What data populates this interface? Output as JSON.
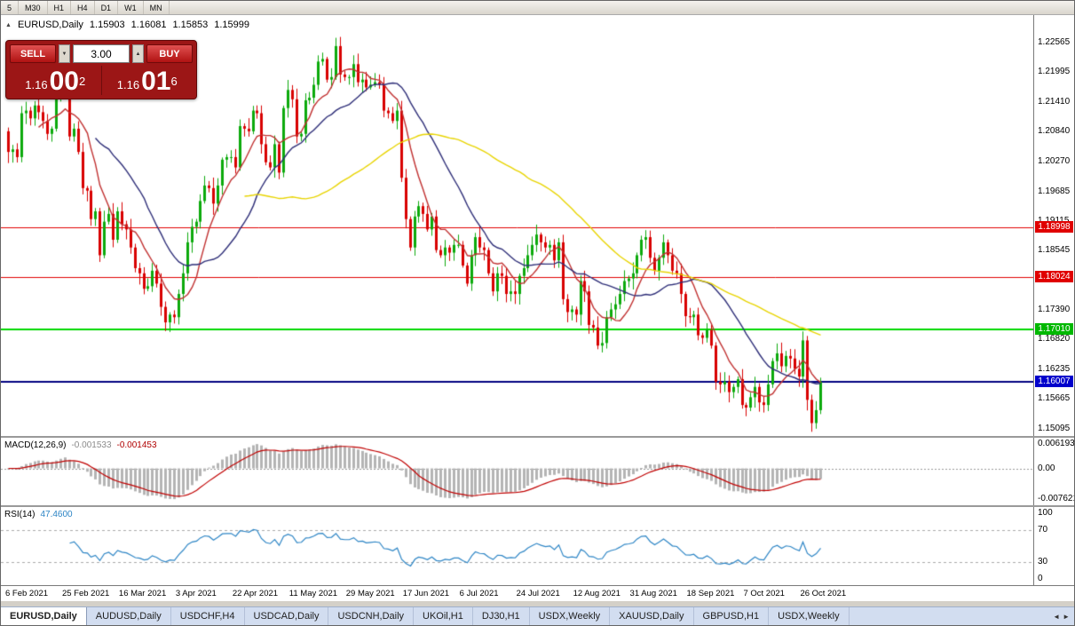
{
  "topbar": {
    "timeframes": [
      "5",
      "M30",
      "H1",
      "H4",
      "D1",
      "W1",
      "MN"
    ]
  },
  "chart": {
    "symbol_header": {
      "marker": "▲",
      "title": "EURUSD,Daily",
      "open": "1.15903",
      "high": "1.16081",
      "low": "1.15853",
      "close": "1.15999"
    },
    "trade_panel": {
      "sell_label": "SELL",
      "buy_label": "BUY",
      "volume": "3.00",
      "decrease_glyph": "▼",
      "increase_glyph": "▲",
      "sell_price": {
        "prefix": "1.16",
        "big": "00",
        "sup": "2"
      },
      "buy_price": {
        "prefix": "1.16",
        "big": "01",
        "sup": "6"
      }
    }
  },
  "macd_panel": {
    "name": "MACD(12,26,9)",
    "value_main": "-0.001533",
    "value_signal": "-0.001453",
    "axis": [
      {
        "label": "0.006193",
        "value": 0.006193
      },
      {
        "label": "0.00",
        "value": 0
      },
      {
        "label": "-0.007621",
        "value": -0.007621
      }
    ]
  },
  "rsi_panel": {
    "name": "RSI(14)",
    "value": "47.4600",
    "axis": [
      {
        "label": "100",
        "value": 100
      },
      {
        "label": "70",
        "value": 70
      },
      {
        "label": "30",
        "value": 30
      },
      {
        "label": "0",
        "value": 0
      }
    ]
  },
  "bottom_tabs": {
    "scroll_left": "◄",
    "scroll_right": "►",
    "items": [
      {
        "label": "EURUSD,Daily",
        "active": true
      },
      {
        "label": "AUDUSD,Daily"
      },
      {
        "label": "USDCHF,H4"
      },
      {
        "label": "USDCAD,Daily"
      },
      {
        "label": "USDCNH,Daily"
      },
      {
        "label": "UKOil,H1"
      },
      {
        "label": "DJ30,H1"
      },
      {
        "label": "USDX,Weekly"
      },
      {
        "label": "XAUUSD,Daily"
      },
      {
        "label": "GBPUSD,H1"
      },
      {
        "label": "USDX,Weekly"
      }
    ]
  },
  "chart_data": {
    "type": "candlestick",
    "symbol": "EURUSD",
    "timeframe": "Daily",
    "price_range": {
      "top": 1.231,
      "bottom": 1.1495
    },
    "first_open": 1.2085,
    "closes": [
      1.2045,
      1.205,
      1.2035,
      1.212,
      1.2125,
      1.211,
      1.2135,
      1.2122,
      1.2105,
      1.208,
      1.209,
      1.215,
      1.217,
      1.2175,
      1.2075,
      1.209,
      1.2045,
      1.1975,
      1.197,
      1.1915,
      1.193,
      1.1845,
      1.191,
      1.1925,
      1.1875,
      1.193,
      1.1905,
      1.1895,
      1.186,
      1.182,
      1.181,
      1.178,
      1.1785,
      1.1815,
      1.179,
      1.1745,
      1.1715,
      1.173,
      1.1725,
      1.177,
      1.181,
      1.187,
      1.19,
      1.191,
      1.195,
      1.198,
      1.1975,
      1.1945,
      1.198,
      1.203,
      1.2035,
      1.2035,
      1.2015,
      1.2095,
      1.209,
      1.2085,
      1.2125,
      1.212,
      1.206,
      1.2025,
      1.2015,
      1.206,
      1.2005,
      1.213,
      1.2165,
      1.2147,
      1.2075,
      1.208,
      1.2145,
      1.215,
      1.2175,
      1.222,
      1.2225,
      1.2185,
      1.219,
      1.225,
      1.2195,
      1.219,
      1.219,
      1.2215,
      1.218,
      1.2185,
      1.217,
      1.2175,
      1.218,
      1.2175,
      1.2125,
      1.212,
      1.2105,
      1.2125,
      1.1995,
      1.1915,
      1.186,
      1.192,
      1.194,
      1.1925,
      1.1895,
      1.192,
      1.1855,
      1.1845,
      1.186,
      1.185,
      1.1865,
      1.1865,
      1.1825,
      1.179,
      1.1845,
      1.188,
      1.186,
      1.1855,
      1.181,
      1.1775,
      1.181,
      1.1805,
      1.177,
      1.1775,
      1.177,
      1.1805,
      1.182,
      1.1845,
      1.1865,
      1.1885,
      1.187,
      1.186,
      1.1865,
      1.1835,
      1.187,
      1.176,
      1.1735,
      1.174,
      1.173,
      1.1795,
      1.1775,
      1.171,
      1.1705,
      1.167,
      1.1675,
      1.1725,
      1.174,
      1.175,
      1.177,
      1.1795,
      1.18,
      1.181,
      1.1845,
      1.1875,
      1.188,
      1.184,
      1.1815,
      1.184,
      1.187,
      1.1845,
      1.1815,
      1.181,
      1.177,
      1.1727,
      1.1725,
      1.173,
      1.169,
      1.1685,
      1.17,
      1.167,
      1.16,
      1.1595,
      1.16,
      1.158,
      1.159,
      1.1605,
      1.1555,
      1.155,
      1.157,
      1.159,
      1.156,
      1.1555,
      1.1595,
      1.164,
      1.1655,
      1.163,
      1.165,
      1.1645,
      1.1625,
      1.161,
      1.168,
      1.1565,
      1.152,
      1.1545,
      1.16
    ],
    "candles_per_date_label": 13,
    "date_labels": [
      "6 Feb 2021",
      "25 Feb 2021",
      "16 Mar 2021",
      "3 Apr 2021",
      "22 Apr 2021",
      "11 May 2021",
      "29 May 2021",
      "17 Jun 2021",
      "6 Jul 2021",
      "24 Jul 2021",
      "12 Aug 2021",
      "31 Aug 2021",
      "18 Sep 2021",
      "7 Oct 2021",
      "26 Oct 2021"
    ],
    "price_axis_labels": [
      "1.22565",
      "1.21995",
      "1.21410",
      "1.20840",
      "1.20270",
      "1.19685",
      "1.19115",
      "1.18545",
      "1.17960",
      "1.17390",
      "1.16820",
      "1.16235",
      "1.15665",
      "1.15095"
    ],
    "hlines": [
      {
        "price": 1.18998,
        "label": "1.18998",
        "color": "#e00000",
        "tag_color": "#e00000",
        "width": 1
      },
      {
        "price": 1.18024,
        "label": "1.18024",
        "color": "#e00000",
        "tag_color": "#e00000",
        "width": 1
      },
      {
        "price": 1.1701,
        "label": "1.17010",
        "color": "#00d800",
        "tag_color": "#00b800",
        "width": 2
      },
      {
        "price": 1.16007,
        "label": "1.16007",
        "color": "#000080",
        "tag_color": "#0000cc",
        "width": 2
      }
    ],
    "moving_averages": [
      {
        "period": 8,
        "color": "#c03030"
      },
      {
        "period": 21,
        "color": "#2e2e78"
      },
      {
        "period": 55,
        "color": "#e8d400"
      }
    ],
    "macd": {
      "fast": 12,
      "slow": 26,
      "signal": 9,
      "range": [
        -0.009,
        0.0075
      ],
      "histogram_color": "#b4b4b4",
      "signal_color": "#c00000"
    },
    "rsi": {
      "period": 14,
      "color": "#2d85c5",
      "levels": [
        70,
        30
      ]
    },
    "colors": {
      "up": "#0caa0c",
      "down": "#d80000",
      "background": "#ffffff"
    }
  }
}
